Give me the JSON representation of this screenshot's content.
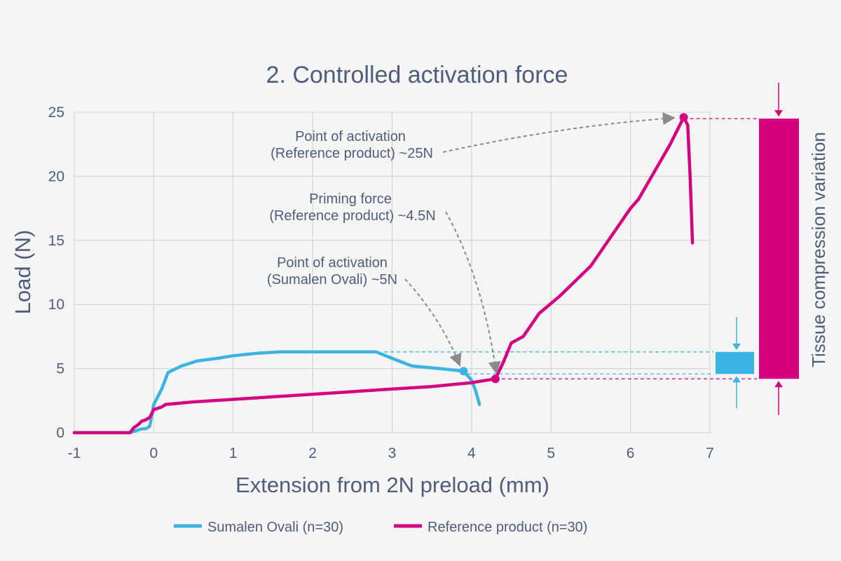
{
  "chart_data": {
    "type": "line",
    "title": "2. Controlled activation force",
    "xlabel": "Extension from 2N preload (mm)",
    "ylabel": "Load (N)",
    "xlim": [
      -1,
      7
    ],
    "ylim": [
      0,
      25
    ],
    "xticks": [
      -1,
      0,
      1,
      2,
      3,
      4,
      5,
      6,
      7
    ],
    "yticks": [
      0,
      5,
      10,
      15,
      20,
      25
    ],
    "grid": true,
    "legend_position": "bottom",
    "series": [
      {
        "name": "Sumalen Ovali (n=30)",
        "color": "#3bb3e3",
        "points": [
          [
            -1,
            0
          ],
          [
            -0.3,
            0
          ],
          [
            -0.25,
            0.1
          ],
          [
            -0.2,
            0.2
          ],
          [
            -0.15,
            0.3
          ],
          [
            -0.1,
            0.3
          ],
          [
            -0.05,
            0.5
          ],
          [
            0.0,
            2.2
          ],
          [
            0.1,
            3.4
          ],
          [
            0.18,
            4.7
          ],
          [
            0.35,
            5.2
          ],
          [
            0.55,
            5.6
          ],
          [
            0.8,
            5.8
          ],
          [
            1.0,
            6.0
          ],
          [
            1.3,
            6.2
          ],
          [
            1.6,
            6.3
          ],
          [
            2.0,
            6.3
          ],
          [
            2.5,
            6.3
          ],
          [
            2.8,
            6.3
          ],
          [
            3.0,
            5.8
          ],
          [
            3.25,
            5.2
          ],
          [
            3.6,
            5.0
          ],
          [
            3.9,
            4.8
          ],
          [
            4.0,
            4.1
          ],
          [
            4.05,
            3.3
          ],
          [
            4.1,
            2.2
          ]
        ]
      },
      {
        "name": "Reference product (n=30)",
        "color": "#d4007f",
        "points": [
          [
            -1,
            0
          ],
          [
            -0.3,
            0
          ],
          [
            -0.25,
            0.4
          ],
          [
            -0.2,
            0.6
          ],
          [
            -0.15,
            0.9
          ],
          [
            -0.1,
            1.0
          ],
          [
            -0.05,
            1.2
          ],
          [
            0.0,
            1.8
          ],
          [
            0.05,
            1.9
          ],
          [
            0.1,
            2.0
          ],
          [
            0.15,
            2.2
          ],
          [
            0.5,
            2.4
          ],
          [
            1.0,
            2.6
          ],
          [
            2.0,
            3.0
          ],
          [
            3.0,
            3.4
          ],
          [
            3.5,
            3.6
          ],
          [
            4.0,
            3.9
          ],
          [
            4.3,
            4.2
          ],
          [
            4.4,
            5.5
          ],
          [
            4.5,
            7.0
          ],
          [
            4.65,
            7.5
          ],
          [
            4.85,
            9.3
          ],
          [
            5.1,
            10.6
          ],
          [
            5.5,
            13.0
          ],
          [
            6.0,
            17.5
          ],
          [
            6.1,
            18.2
          ],
          [
            6.5,
            22.5
          ],
          [
            6.67,
            24.6
          ],
          [
            6.72,
            24.0
          ],
          [
            6.75,
            20.0
          ],
          [
            6.78,
            14.8
          ]
        ]
      }
    ],
    "markers": [
      {
        "series": 0,
        "x": 3.9,
        "y": 4.8
      },
      {
        "series": 1,
        "x": 4.3,
        "y": 4.2
      },
      {
        "series": 1,
        "x": 6.67,
        "y": 24.6
      }
    ],
    "annotations": [
      {
        "lines": [
          "Point of activation",
          "(Reference product) ~25N"
        ],
        "target_x": 6.67,
        "target_y": 24.6
      },
      {
        "lines": [
          "Priming force",
          "(Reference product) ~4.5N"
        ],
        "target_x": 4.3,
        "target_y": 4.2
      },
      {
        "lines": [
          "Point of activation",
          "(Sumalen Ovali) ~5N"
        ],
        "target_x": 3.9,
        "target_y": 4.8
      }
    ],
    "variation": {
      "label": "Tissue compression variation",
      "sumalen_range": [
        4.8,
        6.3
      ],
      "reference_range": [
        4.2,
        24.5
      ]
    }
  }
}
